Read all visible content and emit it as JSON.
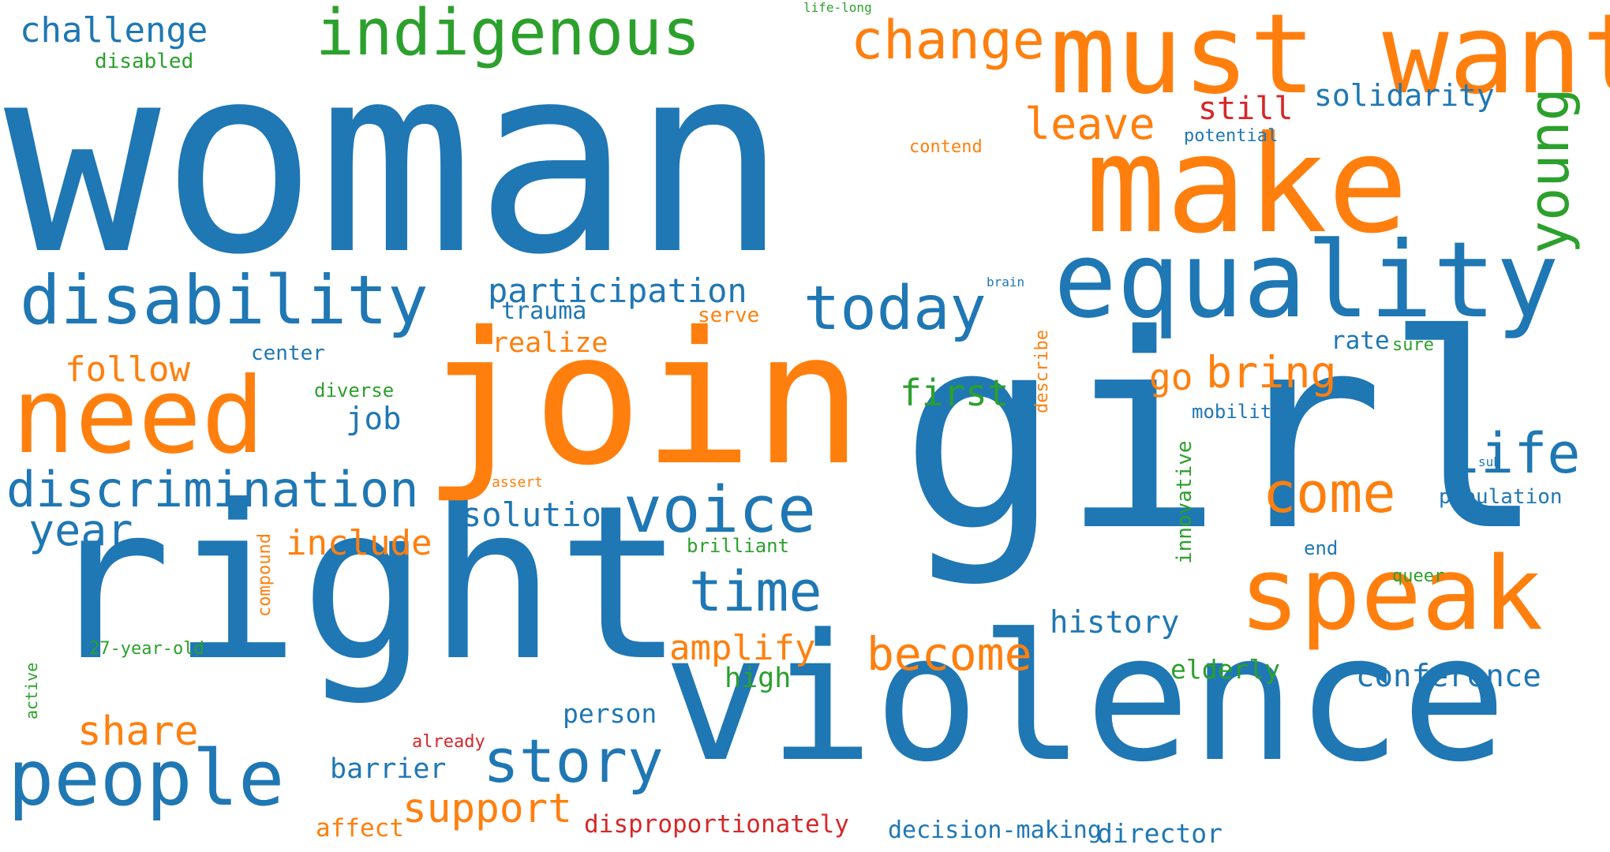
{
  "palette": {
    "blue": "#1f77b4",
    "orange": "#ff7f0e",
    "green": "#2ca02c",
    "red": "#d62728"
  },
  "words": {
    "woman": "woman",
    "girl": "girl",
    "violence": "violence",
    "right": "right",
    "join": "join",
    "make": "make",
    "must_want": "must want",
    "equality": "equality",
    "need": "need",
    "speak": "speak",
    "disability": "disability",
    "people": "people",
    "indigenous": "indigenous",
    "change": "change",
    "today": "today",
    "voice": "voice",
    "story": "story",
    "discrimination": "discrimination",
    "time": "time",
    "life": "life",
    "come": "come",
    "young": "young",
    "become": "become",
    "participation": "participation",
    "bring": "bring",
    "challenge": "challenge",
    "leave": "leave",
    "year": "year",
    "follow": "follow",
    "share": "share",
    "support": "support",
    "amplify": "amplify",
    "include": "include",
    "solution": "solution",
    "history": "history",
    "conference": "conference",
    "first": "first",
    "solidarity": "solidarity",
    "still": "still",
    "go": "go",
    "barrier": "barrier",
    "person": "person",
    "realize": "realize",
    "job": "job",
    "disproportionately": "disproportionately",
    "elderly": "elderly",
    "decision_making": "decision-making",
    "director": "director",
    "high": "high",
    "trauma": "trauma",
    "rate": "rate",
    "affect": "affect",
    "disabled": "disabled",
    "center": "center",
    "serve": "serve",
    "diverse": "diverse",
    "mobility": "mobility",
    "population": "population",
    "potential": "potential",
    "contend": "contend",
    "brilliant": "brilliant",
    "innovative": "innovative",
    "27_year_old": "27-year-old",
    "compound": "compound",
    "describe": "describe",
    "already": "already",
    "end": "end",
    "queer": "queer",
    "sure": "sure",
    "active": "active",
    "assert": "assert",
    "brain": "brain",
    "sub": "sub",
    "life_long": "life-long"
  }
}
